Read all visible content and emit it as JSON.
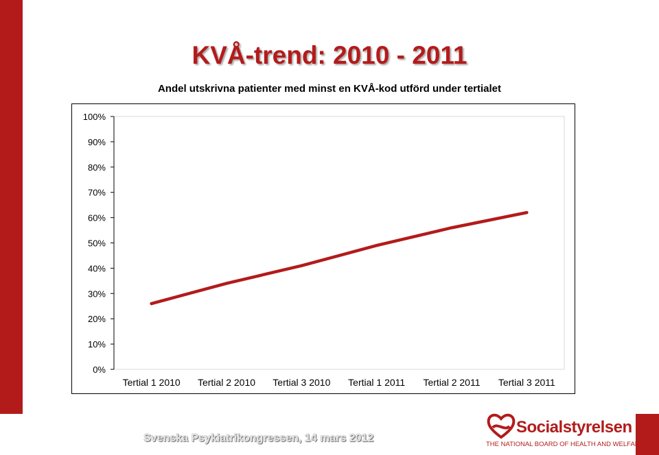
{
  "slide": {
    "title": "KVÅ-trend: 2010 - 2011",
    "footer": "Svenska Psykiatrikongressen, 14 mars 2012",
    "logo_name": "Socialstyrelsen",
    "logo_sub": "THE NATIONAL BOARD OF HEALTH AND WELFARE",
    "accent_color": "#b31b1b"
  },
  "chart_data": {
    "type": "line",
    "title": "Andel utskrivna patienter med minst en KVÅ-kod utförd under tertialet",
    "xlabel": "",
    "ylabel": "",
    "categories": [
      "Tertial 1 2010",
      "Tertial 2 2010",
      "Tertial 3 2010",
      "Tertial 1 2011",
      "Tertial 2 2011",
      "Tertial 3 2011"
    ],
    "series": [
      {
        "values": [
          26,
          34,
          41,
          49,
          56,
          62
        ],
        "color": "#b31b1b"
      }
    ],
    "ylim": [
      0,
      100
    ],
    "yticks": [
      0,
      10,
      20,
      30,
      40,
      50,
      60,
      70,
      80,
      90,
      100
    ],
    "ytick_labels": [
      "0%",
      "10%",
      "20%",
      "30%",
      "40%",
      "50%",
      "60%",
      "70%",
      "80%",
      "90%",
      "100%"
    ],
    "grid": false,
    "legend": "none"
  }
}
